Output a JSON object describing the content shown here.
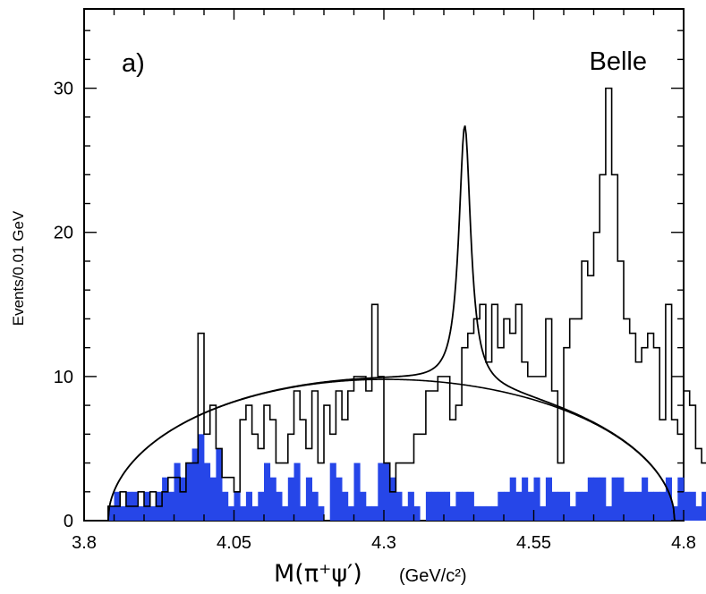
{
  "chart_data": {
    "type": "histogram",
    "panel_label": "a)",
    "experiment_label": "Belle",
    "ylabel": "Events/0.01 GeV",
    "xlabel": "M(π⁺ψ′)",
    "xlabel_unit": "(GeV/c²)",
    "xlim": [
      3.8,
      4.8
    ],
    "ylim": [
      0,
      35.5
    ],
    "x_ticks": [
      "3.8",
      "4.05",
      "4.3",
      "4.55",
      "4.8"
    ],
    "x_tick_values": [
      3.8,
      4.05,
      4.3,
      4.55,
      4.8
    ],
    "y_ticks": [
      "0",
      "10",
      "20",
      "30"
    ],
    "y_tick_values": [
      0,
      10,
      20,
      30
    ],
    "bin_width": 0.01,
    "colors": {
      "sideband_fill": "#2646e8",
      "line": "#000000"
    },
    "series": [
      {
        "name": "data",
        "style": "step",
        "x_start": 3.84,
        "values": [
          1,
          1,
          2,
          1,
          1,
          2,
          1,
          2,
          1,
          2,
          3,
          3,
          2,
          4,
          4,
          13,
          6,
          8,
          5,
          3,
          3,
          2,
          7,
          8,
          6,
          5,
          8,
          7,
          4,
          4,
          6,
          9,
          7,
          5,
          9,
          4,
          8,
          6,
          9,
          7,
          9,
          10,
          10,
          9,
          15,
          10,
          4,
          2,
          4,
          4,
          4,
          6,
          6,
          9,
          9,
          10,
          10,
          7,
          8,
          12,
          13,
          14,
          15,
          11,
          15,
          12,
          14,
          13,
          15,
          11,
          10,
          10,
          10,
          14,
          9,
          4,
          12,
          14,
          14,
          18,
          17,
          20,
          24,
          30,
          24,
          18,
          14,
          13,
          11,
          12,
          13,
          12,
          7,
          15,
          7,
          6,
          9,
          8,
          5,
          4,
          6,
          4,
          5,
          6,
          8,
          11,
          10,
          8,
          11,
          5,
          8,
          4,
          5,
          8,
          4,
          3,
          0,
          1,
          0
        ]
      },
      {
        "name": "sideband",
        "style": "filled-step",
        "x_start": 3.84,
        "values": [
          1,
          2,
          1,
          2,
          2,
          1,
          2,
          1,
          2,
          3,
          2,
          4,
          3,
          4,
          5,
          6,
          4,
          3,
          5,
          2,
          1,
          2,
          1,
          2,
          1,
          2,
          4,
          3,
          2,
          1,
          3,
          4,
          1,
          3,
          2,
          1,
          0,
          4,
          3,
          2,
          1,
          4,
          2,
          1,
          1,
          4,
          4,
          3,
          2,
          1,
          2,
          1,
          0,
          2,
          2,
          2,
          2,
          1,
          2,
          2,
          2,
          1,
          1,
          1,
          1,
          2,
          2,
          3,
          2,
          3,
          2,
          3,
          1,
          3,
          2,
          2,
          2,
          1,
          2,
          2,
          3,
          3,
          3,
          1,
          3,
          3,
          2,
          2,
          2,
          3,
          2,
          2,
          2,
          3,
          1,
          3,
          2,
          2,
          1,
          2,
          1,
          1,
          2,
          1,
          2,
          2,
          1,
          1,
          1,
          1,
          1,
          1,
          1,
          1,
          0,
          1,
          0,
          1,
          0
        ]
      }
    ],
    "fit_curves": [
      {
        "name": "total fit",
        "type": "threshold + Breit-Wigner",
        "threshold_x": 3.84,
        "endpoint_x": 4.785,
        "background_max": 10,
        "peak_mass": 4.435,
        "peak_width": 0.024,
        "peak_height": 18
      },
      {
        "name": "background",
        "type": "threshold",
        "threshold_x": 3.84,
        "endpoint_x": 4.785,
        "background_max": 10
      }
    ]
  }
}
